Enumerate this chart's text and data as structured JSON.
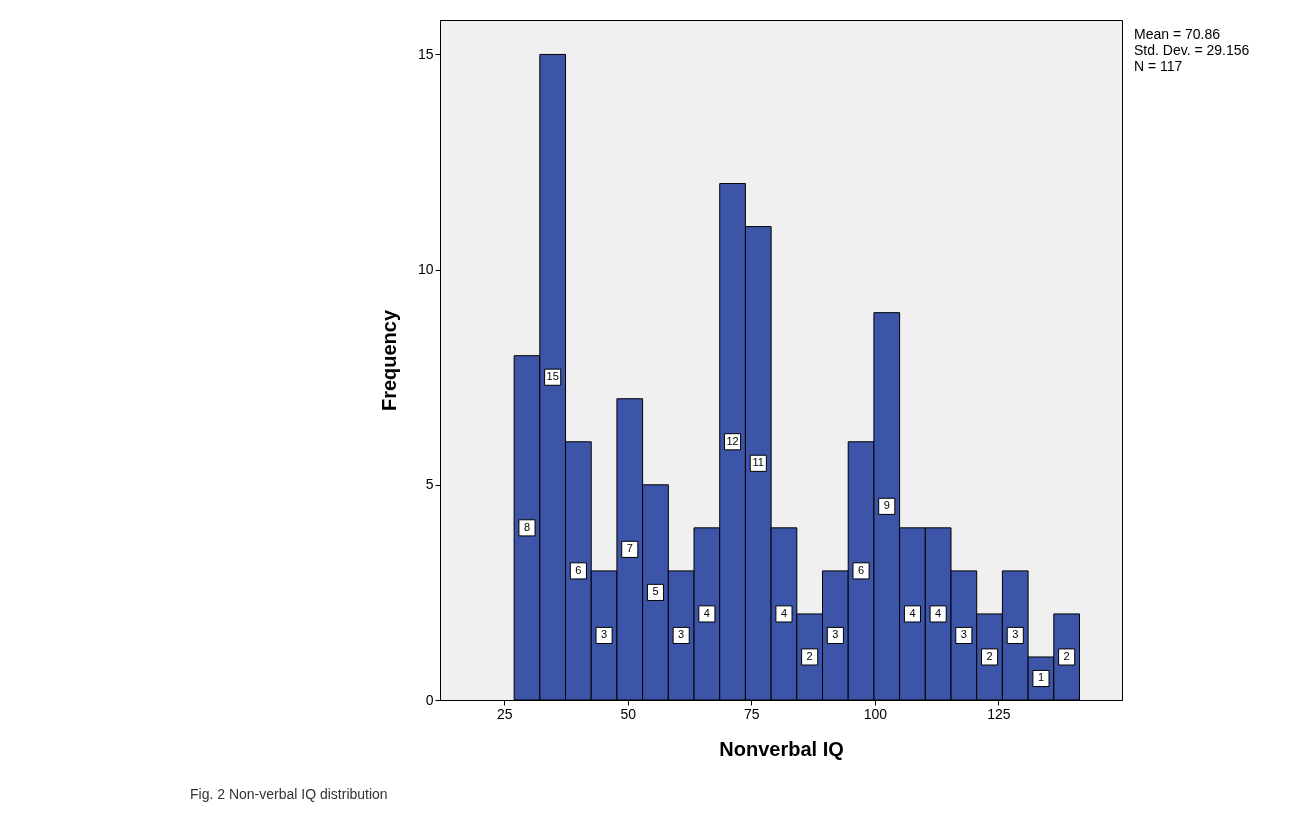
{
  "chart_data": {
    "type": "histogram",
    "xlabel": "Nonverbal IQ",
    "ylabel": "Frequency",
    "bins": [
      27,
      32.2,
      37.4,
      42.6,
      47.8,
      53,
      58.2,
      63.4,
      68.6,
      73.8,
      79,
      84.2,
      89.4,
      94.6,
      99.8,
      105,
      110.2,
      115.4,
      120.6,
      125.8,
      131,
      136.2,
      141.4
    ],
    "values": [
      8,
      15,
      6,
      3,
      7,
      5,
      3,
      4,
      12,
      11,
      4,
      2,
      3,
      6,
      9,
      4,
      4,
      3,
      2,
      3,
      1,
      2
    ],
    "color": "#3d55a8",
    "xlim": [
      12,
      150
    ],
    "xticks": [
      25,
      50,
      75,
      100,
      125
    ],
    "ylim": [
      0,
      15.8
    ],
    "yticks": [
      0,
      5,
      10,
      15
    ],
    "grid": false,
    "data_labels": true,
    "annotations": [
      "Mean = 70.86",
      "Std. Dev. = 29.156",
      "N = 117",
      "Fig. 2 Non-verbal IQ distribution"
    ]
  }
}
